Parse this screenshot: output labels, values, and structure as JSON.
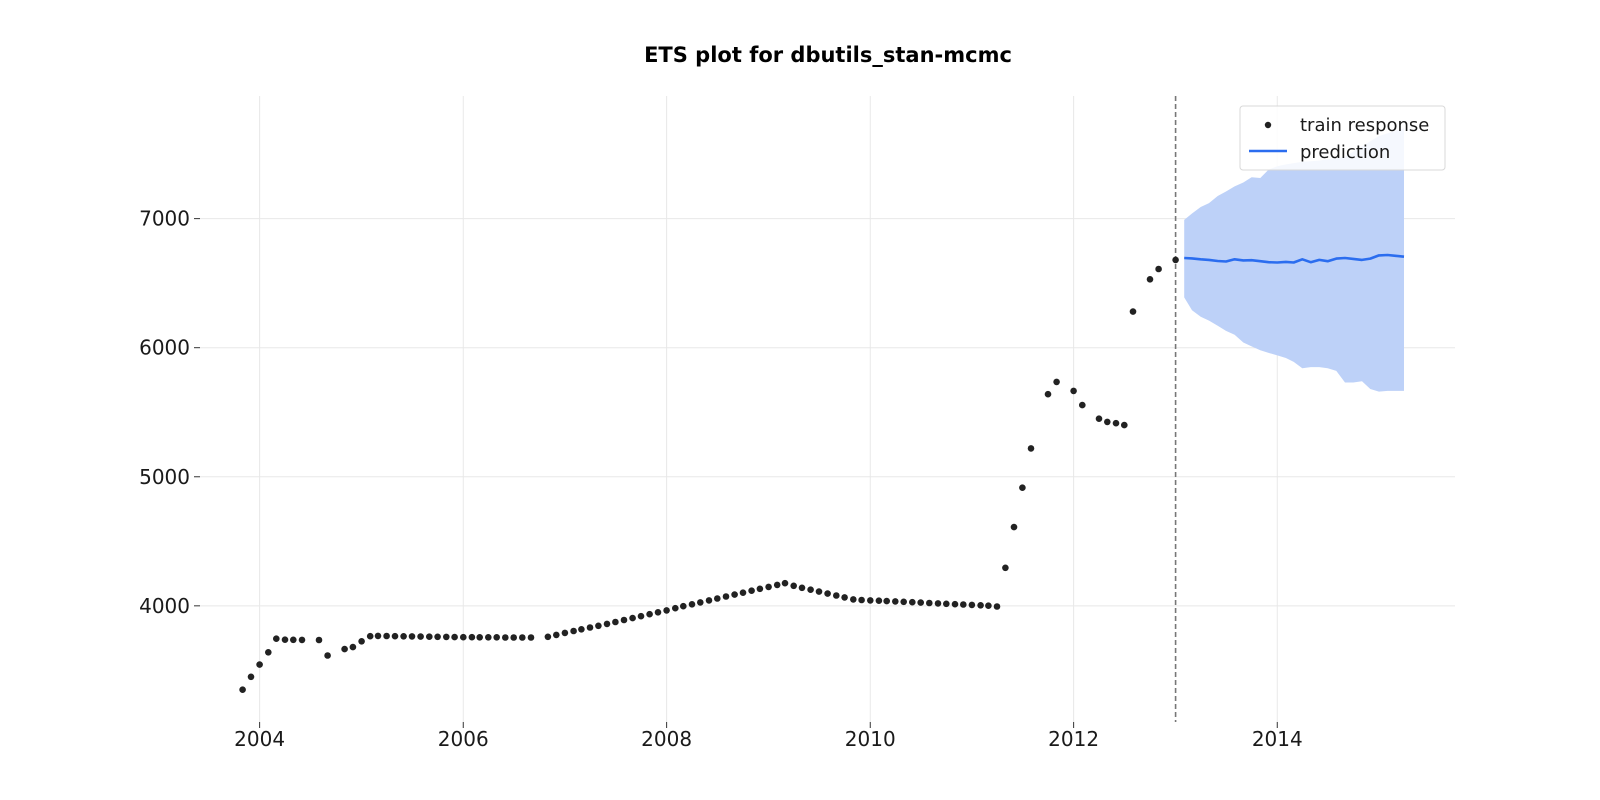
{
  "chart_data": {
    "type": "scatter",
    "title": "ETS plot for dbutils_stan-mcmc",
    "xlabel": "",
    "ylabel": "",
    "x_ticks": [
      "2004",
      "2006",
      "2008",
      "2010",
      "2012",
      "2014"
    ],
    "y_ticks": [
      "4000",
      "5000",
      "6000",
      "7000"
    ],
    "xlim": [
      "2003-06-01",
      "2015-10-01"
    ],
    "ylim": [
      3100,
      7950
    ],
    "grid": true,
    "legend_position": "top-right",
    "cutoff_date": "2013-01-01",
    "legend": [
      "train response",
      "prediction"
    ],
    "colors": {
      "train_response": "#222222",
      "prediction": "#2b6def",
      "interval": "#bdd1f8",
      "cutoff": "#777777",
      "grid": "#e8e8e8"
    },
    "series": [
      {
        "name": "train response",
        "kind": "scatter",
        "points": [
          [
            "2003-11-01",
            3350
          ],
          [
            "2003-12-01",
            3450
          ],
          [
            "2004-01-01",
            3545
          ],
          [
            "2004-02-01",
            3640
          ],
          [
            "2004-03-01",
            3745
          ],
          [
            "2004-04-01",
            3738
          ],
          [
            "2004-05-01",
            3737
          ],
          [
            "2004-06-01",
            3736
          ],
          [
            "2004-08-01",
            3735
          ],
          [
            "2004-09-01",
            3615
          ],
          [
            "2004-11-01",
            3665
          ],
          [
            "2004-12-01",
            3680
          ],
          [
            "2005-01-01",
            3725
          ],
          [
            "2005-02-01",
            3765
          ],
          [
            "2005-03-01",
            3767
          ],
          [
            "2005-04-01",
            3766
          ],
          [
            "2005-05-01",
            3765
          ],
          [
            "2005-06-01",
            3764
          ],
          [
            "2005-07-01",
            3763
          ],
          [
            "2005-08-01",
            3762
          ],
          [
            "2005-09-01",
            3761
          ],
          [
            "2005-10-01",
            3760
          ],
          [
            "2005-11-01",
            3759
          ],
          [
            "2005-12-01",
            3758
          ],
          [
            "2006-01-01",
            3757
          ],
          [
            "2006-02-01",
            3757
          ],
          [
            "2006-03-01",
            3756
          ],
          [
            "2006-04-01",
            3756
          ],
          [
            "2006-05-01",
            3756
          ],
          [
            "2006-06-01",
            3755
          ],
          [
            "2006-07-01",
            3755
          ],
          [
            "2006-08-01",
            3755
          ],
          [
            "2006-09-01",
            3755
          ],
          [
            "2006-11-01",
            3760
          ],
          [
            "2006-12-01",
            3775
          ],
          [
            "2007-01-01",
            3790
          ],
          [
            "2007-02-01",
            3805
          ],
          [
            "2007-03-01",
            3818
          ],
          [
            "2007-04-01",
            3832
          ],
          [
            "2007-05-01",
            3845
          ],
          [
            "2007-06-01",
            3860
          ],
          [
            "2007-07-01",
            3875
          ],
          [
            "2007-08-01",
            3890
          ],
          [
            "2007-09-01",
            3905
          ],
          [
            "2007-10-01",
            3920
          ],
          [
            "2007-11-01",
            3935
          ],
          [
            "2007-12-01",
            3950
          ],
          [
            "2008-01-01",
            3965
          ],
          [
            "2008-02-01",
            3982
          ],
          [
            "2008-03-01",
            3997
          ],
          [
            "2008-04-01",
            4012
          ],
          [
            "2008-05-01",
            4027
          ],
          [
            "2008-06-01",
            4042
          ],
          [
            "2008-07-01",
            4057
          ],
          [
            "2008-08-01",
            4072
          ],
          [
            "2008-09-01",
            4087
          ],
          [
            "2008-10-01",
            4102
          ],
          [
            "2008-11-01",
            4117
          ],
          [
            "2008-12-01",
            4132
          ],
          [
            "2009-01-01",
            4147
          ],
          [
            "2009-02-01",
            4162
          ],
          [
            "2009-03-01",
            4175
          ],
          [
            "2009-04-01",
            4155
          ],
          [
            "2009-05-01",
            4140
          ],
          [
            "2009-06-01",
            4125
          ],
          [
            "2009-07-01",
            4110
          ],
          [
            "2009-08-01",
            4095
          ],
          [
            "2009-09-01",
            4080
          ],
          [
            "2009-10-01",
            4065
          ],
          [
            "2009-11-01",
            4050
          ],
          [
            "2009-12-01",
            4045
          ],
          [
            "2010-01-01",
            4042
          ],
          [
            "2010-02-01",
            4040
          ],
          [
            "2010-03-01",
            4037
          ],
          [
            "2010-04-01",
            4034
          ],
          [
            "2010-05-01",
            4031
          ],
          [
            "2010-06-01",
            4028
          ],
          [
            "2010-07-01",
            4025
          ],
          [
            "2010-08-01",
            4022
          ],
          [
            "2010-09-01",
            4019
          ],
          [
            "2010-10-01",
            4016
          ],
          [
            "2010-11-01",
            4013
          ],
          [
            "2010-12-01",
            4010
          ],
          [
            "2011-01-01",
            4007
          ],
          [
            "2011-02-01",
            4004
          ],
          [
            "2011-03-01",
            4001
          ],
          [
            "2011-04-01",
            3995
          ],
          [
            "2011-05-01",
            4295
          ],
          [
            "2011-06-01",
            4610
          ],
          [
            "2011-07-01",
            4915
          ],
          [
            "2011-08-01",
            5220
          ],
          [
            "2011-10-01",
            5640
          ],
          [
            "2011-11-01",
            5735
          ],
          [
            "2012-01-01",
            5665
          ],
          [
            "2012-02-01",
            5555
          ],
          [
            "2012-04-01",
            5450
          ],
          [
            "2012-05-01",
            5425
          ],
          [
            "2012-06-01",
            5415
          ],
          [
            "2012-07-01",
            5400
          ],
          [
            "2012-08-01",
            6280
          ],
          [
            "2012-10-01",
            6530
          ],
          [
            "2012-11-01",
            6610
          ],
          [
            "2013-01-01",
            6680
          ]
        ]
      },
      {
        "name": "prediction",
        "kind": "line",
        "x": [
          "2013-02-01",
          "2013-03-01",
          "2013-04-01",
          "2013-05-01",
          "2013-06-01",
          "2013-07-01",
          "2013-08-01",
          "2013-09-01",
          "2013-10-01",
          "2013-11-01",
          "2013-12-01",
          "2014-01-01",
          "2014-02-01",
          "2014-03-01",
          "2014-04-01",
          "2014-05-01",
          "2014-06-01",
          "2014-07-01",
          "2014-08-01",
          "2014-09-01",
          "2014-10-01",
          "2014-11-01",
          "2014-12-01",
          "2015-01-01",
          "2015-02-01",
          "2015-03-01",
          "2015-04-01"
        ],
        "y": [
          6695,
          6692,
          6685,
          6680,
          6672,
          6668,
          6685,
          6676,
          6678,
          6670,
          6662,
          6660,
          6665,
          6660,
          6685,
          6662,
          6680,
          6670,
          6690,
          6695,
          6688,
          6680,
          6690,
          6715,
          6718,
          6712,
          6705
        ],
        "lower": [
          6390,
          6290,
          6240,
          6210,
          6170,
          6130,
          6100,
          6040,
          6010,
          5980,
          5960,
          5940,
          5920,
          5890,
          5840,
          5850,
          5850,
          5840,
          5820,
          5730,
          5730,
          5740,
          5680,
          5660,
          5665,
          5665,
          5665
        ],
        "upper": [
          6990,
          7040,
          7090,
          7120,
          7175,
          7210,
          7250,
          7280,
          7320,
          7315,
          7380,
          7405,
          7420,
          7430,
          7440,
          7445,
          7450,
          7460,
          7470,
          7480,
          7520,
          7560,
          7600,
          7640,
          7660,
          7680,
          7700
        ]
      }
    ]
  }
}
